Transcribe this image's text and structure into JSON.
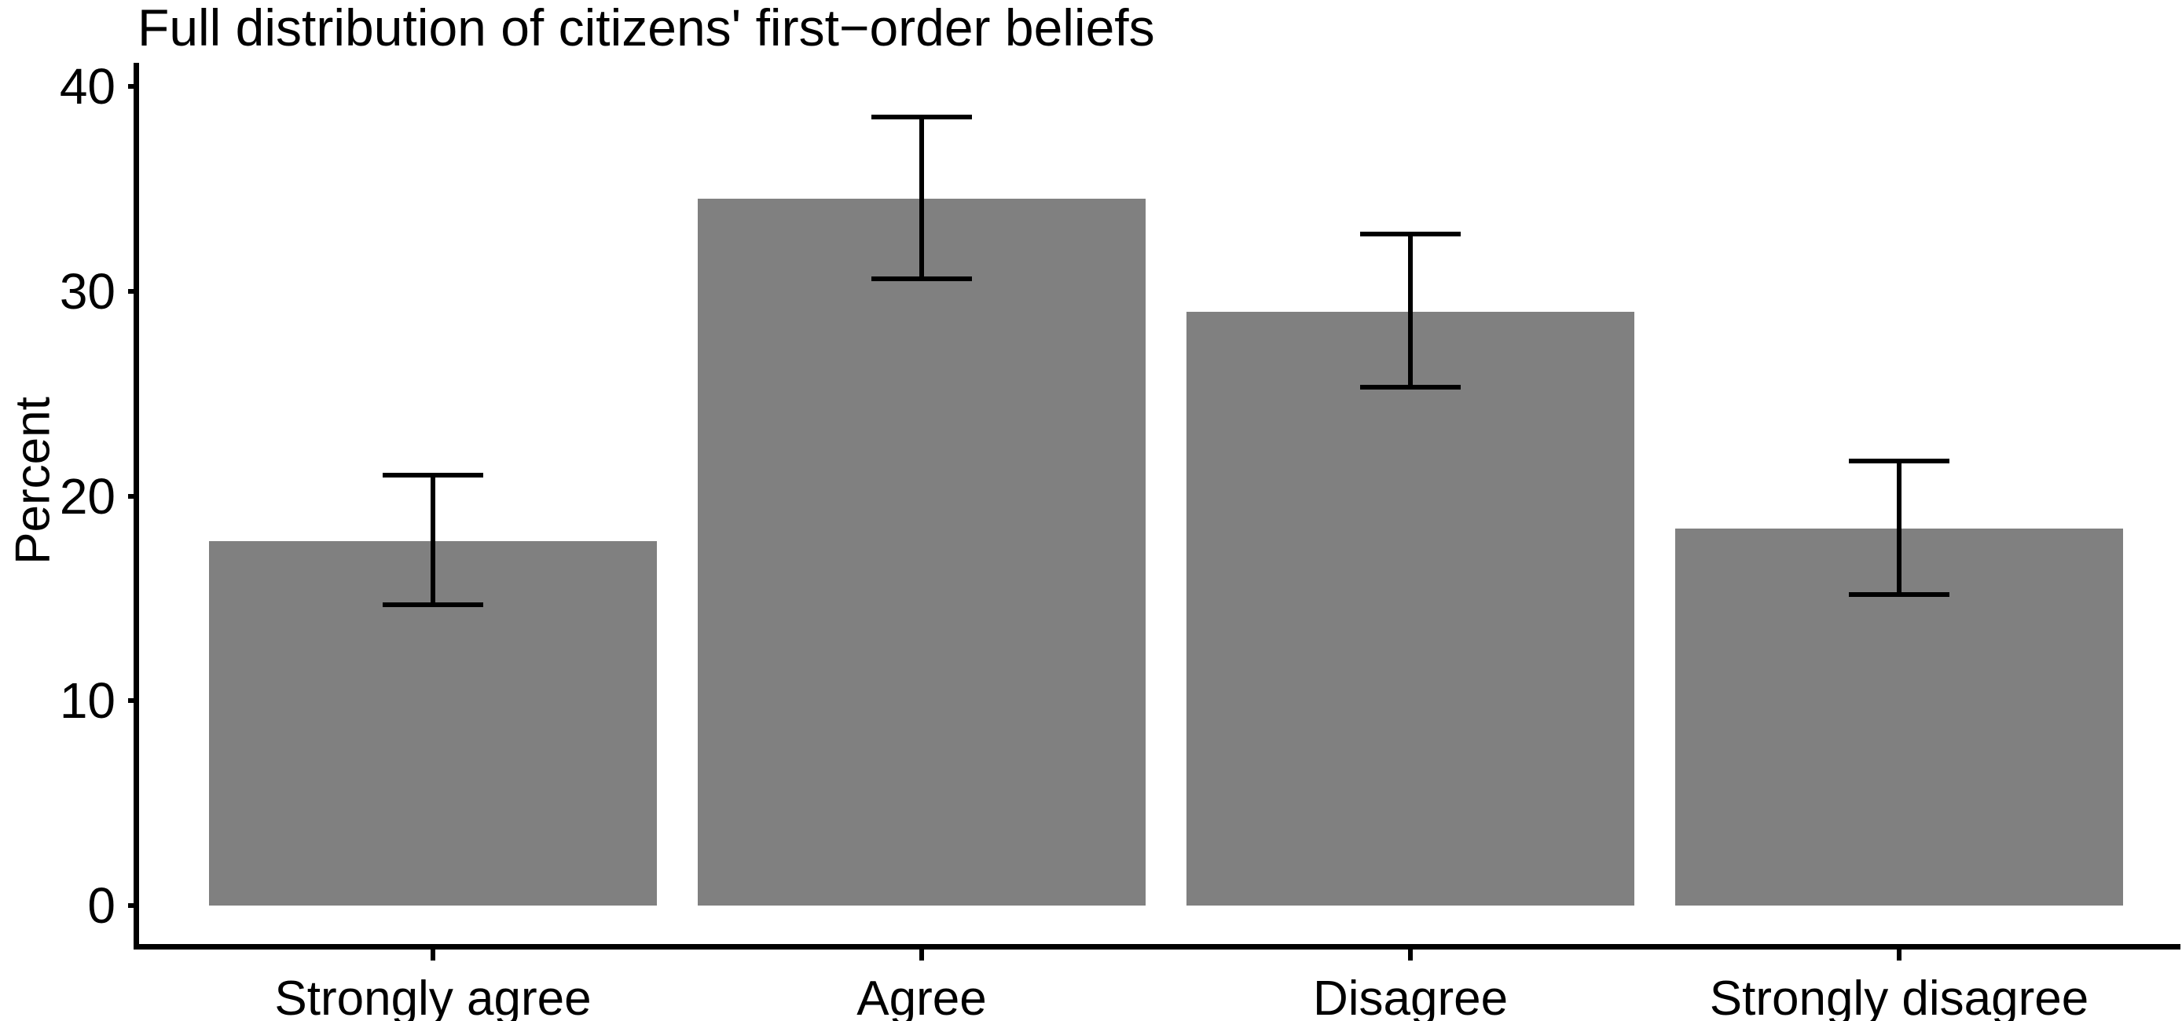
{
  "chart_data": {
    "type": "bar",
    "title": "Full distribution of citizens' first−order beliefs",
    "ylabel": "Percent",
    "xlabel": "",
    "categories": [
      "Strongly agree",
      "Agree",
      "Disagree",
      "Strongly disagree"
    ],
    "values": [
      17.8,
      34.5,
      29.0,
      18.4
    ],
    "ci_low": [
      14.7,
      30.6,
      25.3,
      15.2
    ],
    "ci_high": [
      21.0,
      38.5,
      32.8,
      21.7
    ],
    "yticks": [
      0,
      10,
      20,
      30,
      40
    ],
    "ylim": [
      0,
      40
    ],
    "grid": false,
    "legend": "none",
    "bar_color": "#808080",
    "error_bar_color": "#000000",
    "axis_color": "#000000",
    "background_color": "#ffffff"
  }
}
